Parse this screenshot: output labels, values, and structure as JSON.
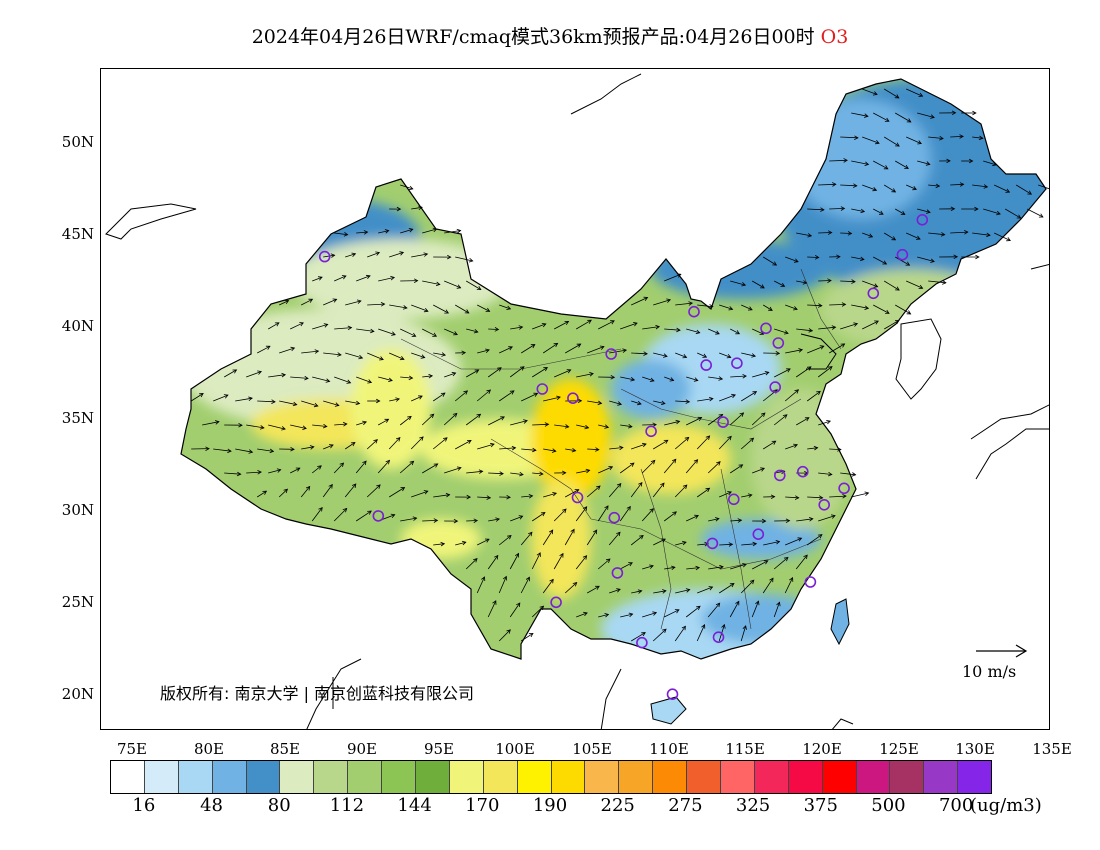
{
  "title": {
    "main": "2024年04月26日WRF/cmaq模式36km预报产品:04月26日00时",
    "species": "O3"
  },
  "axes": {
    "lat_labels": [
      "50N",
      "45N",
      "40N",
      "35N",
      "30N",
      "25N",
      "20N"
    ],
    "lon_labels": [
      "75E",
      "80E",
      "85E",
      "90E",
      "95E",
      "100E",
      "105E",
      "110E",
      "115E",
      "120E",
      "125E",
      "130E",
      "135E"
    ]
  },
  "copyright": "版权所有: 南京大学 | 南京创蓝科技有限公司",
  "wind_reference": {
    "label": "10 m/s"
  },
  "legend": {
    "colors": [
      "#ffffff",
      "#d4ecfa",
      "#a8d8f3",
      "#6fb2e3",
      "#438fc8",
      "#dcebc0",
      "#b9d78a",
      "#a2ce6f",
      "#8cc553",
      "#6fae3a",
      "#f0f57a",
      "#f3e65a",
      "#fff200",
      "#fedb00",
      "#f9b64a",
      "#f7a526",
      "#fd8a05",
      "#f15f2c",
      "#ff6565",
      "#f3275a",
      "#f50a46",
      "#ff0000",
      "#cc1680",
      "#a63263",
      "#9739c6",
      "#8425e7"
    ],
    "labels": [
      "16",
      "48",
      "80",
      "112",
      "144",
      "170",
      "190",
      "225",
      "275",
      "325",
      "375",
      "500",
      "700"
    ],
    "unit": "(ug/m3)"
  },
  "map": {
    "lon_range": [
      73,
      135
    ],
    "lat_range": [
      18,
      54
    ],
    "stations": [
      {
        "lon": 87.6,
        "lat": 43.8
      },
      {
        "lon": 91.1,
        "lat": 29.7
      },
      {
        "lon": 101.8,
        "lat": 36.6
      },
      {
        "lon": 103.8,
        "lat": 36.1
      },
      {
        "lon": 106.3,
        "lat": 38.5
      },
      {
        "lon": 111.7,
        "lat": 40.8
      },
      {
        "lon": 112.5,
        "lat": 37.9
      },
      {
        "lon": 114.5,
        "lat": 38.0
      },
      {
        "lon": 116.4,
        "lat": 39.9
      },
      {
        "lon": 117.2,
        "lat": 39.1
      },
      {
        "lon": 117.0,
        "lat": 36.7
      },
      {
        "lon": 113.6,
        "lat": 34.8
      },
      {
        "lon": 108.9,
        "lat": 34.3
      },
      {
        "lon": 117.3,
        "lat": 31.9
      },
      {
        "lon": 118.8,
        "lat": 32.1
      },
      {
        "lon": 121.5,
        "lat": 31.2
      },
      {
        "lon": 120.2,
        "lat": 30.3
      },
      {
        "lon": 114.3,
        "lat": 30.6
      },
      {
        "lon": 112.9,
        "lat": 28.2
      },
      {
        "lon": 115.9,
        "lat": 28.7
      },
      {
        "lon": 119.3,
        "lat": 26.1
      },
      {
        "lon": 113.3,
        "lat": 23.1
      },
      {
        "lon": 108.3,
        "lat": 22.8
      },
      {
        "lon": 110.3,
        "lat": 20.0
      },
      {
        "lon": 102.7,
        "lat": 25.0
      },
      {
        "lon": 106.7,
        "lat": 26.6
      },
      {
        "lon": 106.5,
        "lat": 29.6
      },
      {
        "lon": 104.1,
        "lat": 30.7
      },
      {
        "lon": 123.4,
        "lat": 41.8
      },
      {
        "lon": 125.3,
        "lat": 43.9
      },
      {
        "lon": 126.6,
        "lat": 45.8
      }
    ]
  }
}
